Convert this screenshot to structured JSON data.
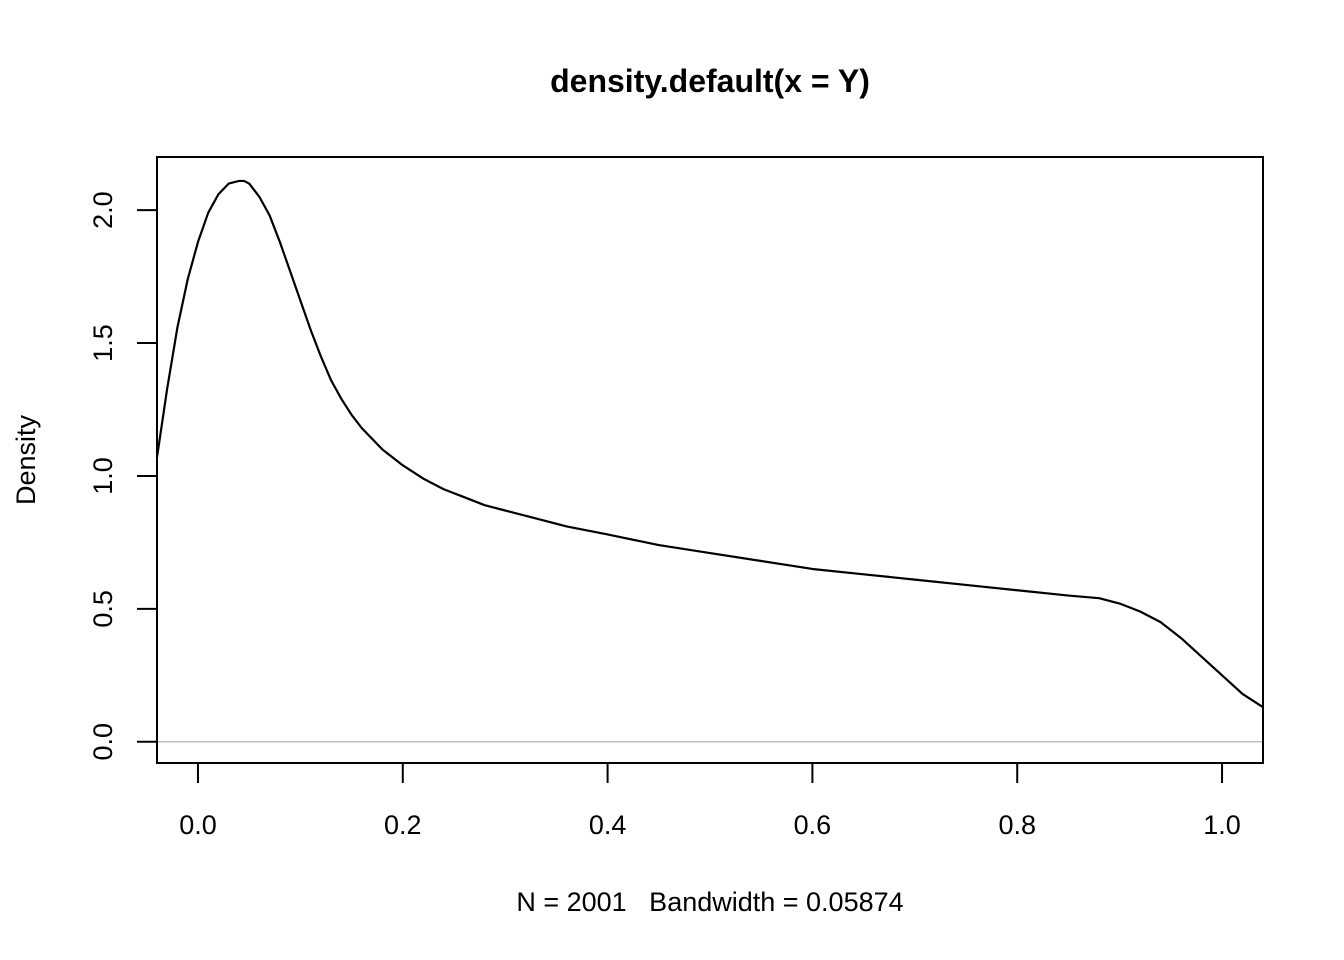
{
  "chart_data": {
    "type": "line",
    "title": "density.default(x = Y)",
    "xlabel": "N = 2001   Bandwidth = 0.05874",
    "ylabel": "Density",
    "xlim": [
      -0.04,
      1.04
    ],
    "ylim": [
      -0.08,
      2.2
    ],
    "x_ticks": [
      0.0,
      0.2,
      0.4,
      0.6,
      0.8,
      1.0
    ],
    "x_tick_labels": [
      "0.0",
      "0.2",
      "0.4",
      "0.6",
      "0.8",
      "1.0"
    ],
    "y_ticks": [
      0.0,
      0.5,
      1.0,
      1.5,
      2.0
    ],
    "y_tick_labels": [
      "0.0",
      "0.5",
      "1.0",
      "1.5",
      "2.0"
    ],
    "baseline_y": 0,
    "baseline_color": "#bebebe",
    "line_color": "#000000",
    "series": [
      {
        "x": [
          -0.04,
          -0.03,
          -0.02,
          -0.01,
          0.0,
          0.01,
          0.02,
          0.03,
          0.04,
          0.045,
          0.05,
          0.06,
          0.07,
          0.08,
          0.09,
          0.1,
          0.11,
          0.12,
          0.13,
          0.14,
          0.15,
          0.16,
          0.17,
          0.18,
          0.2,
          0.22,
          0.24,
          0.26,
          0.28,
          0.3,
          0.33,
          0.36,
          0.4,
          0.45,
          0.5,
          0.55,
          0.6,
          0.65,
          0.7,
          0.75,
          0.8,
          0.85,
          0.88,
          0.9,
          0.92,
          0.94,
          0.96,
          0.98,
          1.0,
          1.02,
          1.04
        ],
        "y": [
          1.07,
          1.33,
          1.56,
          1.74,
          1.88,
          1.99,
          2.06,
          2.1,
          2.11,
          2.11,
          2.1,
          2.05,
          1.98,
          1.88,
          1.77,
          1.66,
          1.55,
          1.45,
          1.36,
          1.29,
          1.23,
          1.18,
          1.14,
          1.1,
          1.04,
          0.99,
          0.95,
          0.92,
          0.89,
          0.87,
          0.84,
          0.81,
          0.78,
          0.74,
          0.71,
          0.68,
          0.65,
          0.63,
          0.61,
          0.59,
          0.57,
          0.55,
          0.54,
          0.52,
          0.49,
          0.45,
          0.39,
          0.32,
          0.25,
          0.18,
          0.13
        ]
      }
    ]
  }
}
